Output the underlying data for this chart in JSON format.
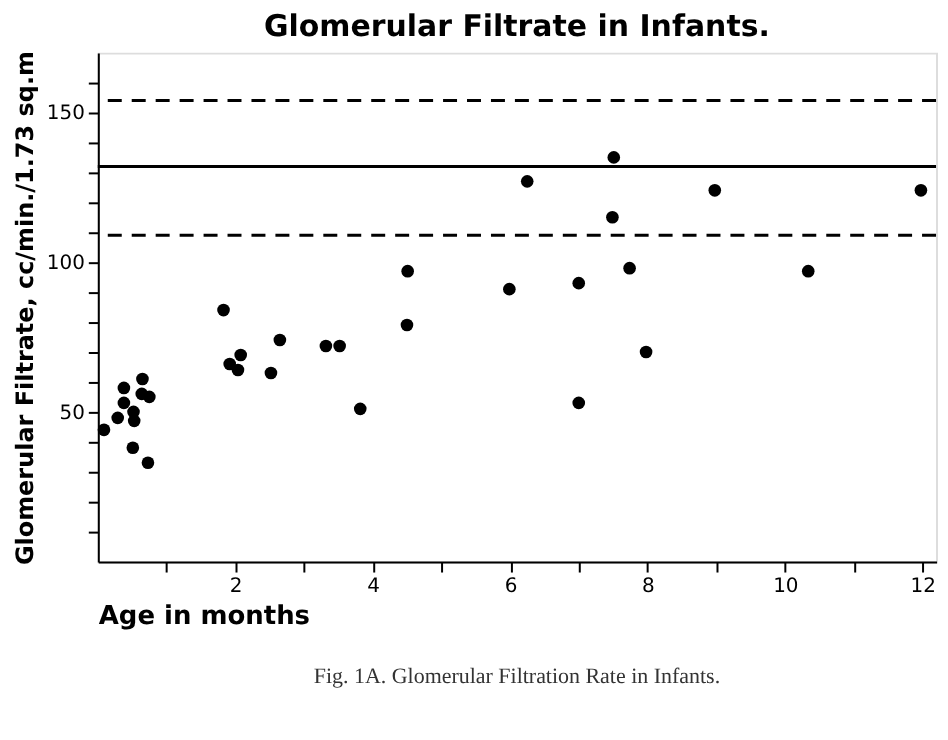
{
  "chart_data": {
    "type": "scatter",
    "title": "Glomerular Filtrate in Infants.",
    "xlabel": "Age in months",
    "ylabel": "Glomerular Filtrate, cc/min./1.73 sq.m",
    "annotations": [
      "Fig. 1A. Glomerular Filtration Rate in Infants."
    ],
    "series": [
      {
        "color": "#000000",
        "x": [
          0.09,
          0.29,
          0.38,
          0.38,
          0.52,
          0.53,
          0.51,
          0.65,
          0.64,
          0.75,
          0.73,
          1.83,
          1.92,
          2.04,
          2.08,
          2.52,
          2.65,
          3.32,
          3.52,
          3.82,
          4.51,
          4.5,
          7.51,
          6.25,
          8.98,
          11.98,
          7.49,
          5.99,
          7.0,
          7.74,
          10.34,
          7.98,
          7.0
        ],
        "values": [
          44,
          48,
          58,
          53,
          50,
          47,
          38,
          61,
          56,
          55,
          33,
          84,
          66,
          64,
          69,
          63,
          74,
          72,
          72,
          51,
          97,
          79,
          135,
          127,
          124,
          124,
          115,
          91,
          93,
          98,
          97,
          70,
          53
        ]
      }
    ],
    "marker": "circle",
    "xlim": [
      0,
      12.2
    ],
    "ylim": [
      0,
      170
    ],
    "xticks": [
      {
        "value": 1,
        "label": null
      },
      2,
      {
        "value": 3,
        "label": null
      },
      4,
      {
        "value": 5,
        "label": null
      },
      6,
      {
        "value": 7,
        "label": null
      },
      8,
      {
        "value": 9,
        "label": null
      },
      10,
      {
        "value": 11,
        "label": null
      },
      12
    ],
    "yticks": [
      {
        "value": 10,
        "label": null
      },
      {
        "value": 20,
        "label": null
      },
      {
        "value": 30,
        "label": null
      },
      {
        "value": 40,
        "label": null
      },
      50,
      {
        "value": 60,
        "label": null
      },
      {
        "value": 70,
        "label": null
      },
      {
        "value": 80,
        "label": null
      },
      {
        "value": 90,
        "label": null
      },
      100,
      {
        "value": 110,
        "label": null
      },
      {
        "value": 120,
        "label": null
      },
      {
        "value": 130,
        "label": null
      },
      {
        "value": 140,
        "label": null
      },
      150,
      {
        "value": 160,
        "label": null
      }
    ],
    "grid": false,
    "ref_lines": [
      {
        "axis": "y",
        "value": 154,
        "line_style": "dashed"
      },
      {
        "axis": "y",
        "value": 132,
        "line_style": "solid"
      },
      {
        "axis": "y",
        "value": 109,
        "line_style": "dashed"
      }
    ]
  }
}
